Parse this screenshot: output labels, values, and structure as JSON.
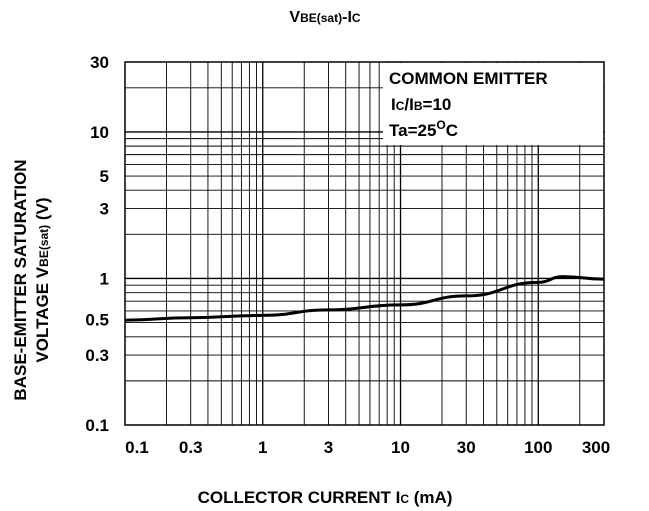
{
  "chart_data": {
    "type": "line",
    "title": "VBE(sat)-IC",
    "title_parts": {
      "main": "V",
      "sub": "BE(sat)",
      "suffix": "-I",
      "sub2": "C"
    },
    "xlabel": "COLLECTOR CURRENT IC (mA)",
    "xlabel_parts": {
      "main": "COLLECTOR CURRENT I",
      "sub": "C",
      "suffix": " (mA)"
    },
    "ylabel": "BASE-EMITTER SATURATION VOLTAGE VBE(sat) (V)",
    "ylabel_line1": "BASE-EMITTER SATURATION",
    "ylabel_line2_parts": {
      "main": "VOLTAGE V",
      "sub": "BE(sat)",
      "suffix": " (V)"
    },
    "x_scale": "log",
    "y_scale": "log",
    "xlim": [
      0.1,
      300
    ],
    "ylim": [
      0.1,
      30
    ],
    "x_ticks": [
      0.1,
      0.3,
      1,
      3,
      10,
      30,
      100,
      300
    ],
    "x_tick_labels": [
      "0.1",
      "0.3",
      "1",
      "3",
      "10",
      "30",
      "100",
      "300"
    ],
    "y_ticks": [
      0.1,
      0.3,
      0.5,
      1,
      3,
      5,
      10,
      30
    ],
    "y_tick_labels": [
      "0.1",
      "0.3",
      "0.5",
      "1",
      "3",
      "5",
      "10",
      "30"
    ],
    "grid": true,
    "legend_position": "top-right",
    "annotations": [
      {
        "text": "COMMON EMITTER",
        "parts": {
          "main": "COMMON EMITTER"
        }
      },
      {
        "text": "IC/IB=10",
        "parts": {
          "a": "I",
          "asub": "C",
          "b": "/I",
          "bsub": "B",
          "c": "=10"
        }
      },
      {
        "text": "Ta=25°C",
        "parts": {
          "main": "Ta=25",
          "sup": "O",
          "suffix": "C"
        }
      }
    ],
    "series": [
      {
        "x": [
          0.1,
          0.3,
          1,
          3,
          10,
          30,
          100,
          150,
          300
        ],
        "y": [
          0.52,
          0.54,
          0.56,
          0.61,
          0.66,
          0.76,
          0.94,
          1.03,
          0.99
        ]
      }
    ]
  }
}
